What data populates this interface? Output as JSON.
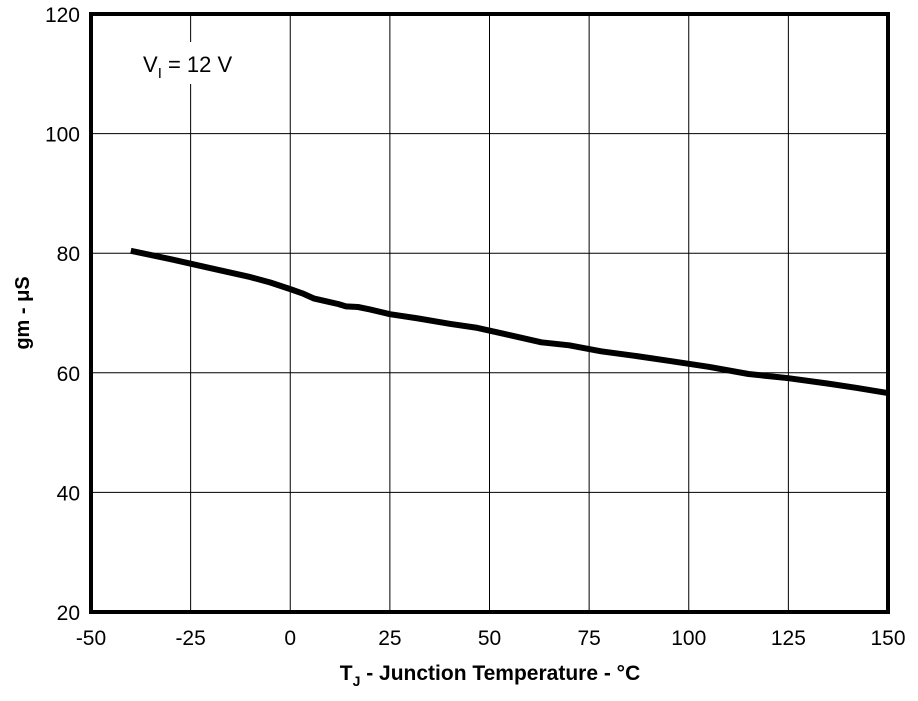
{
  "chart_data": {
    "type": "line",
    "title": "",
    "xlabel": "Junction Temperature - °C",
    "xlabel_symbol": "T",
    "xlabel_symbol_sub": "J",
    "xlabel_sep": " - ",
    "ylabel": "gm - μS",
    "annotation": {
      "symbol": "V",
      "sub": "I",
      "rest": " = 12 V"
    },
    "xlim": [
      -50,
      150
    ],
    "ylim": [
      20,
      120
    ],
    "xticks": [
      -50,
      -25,
      0,
      25,
      50,
      75,
      100,
      125,
      150
    ],
    "yticks": [
      20,
      40,
      60,
      80,
      100,
      120
    ],
    "grid": true,
    "series": [
      {
        "name": "gm",
        "color": "#000000",
        "x": [
          -40,
          -30,
          -20,
          -10,
          -5,
          0,
          3,
          6,
          10,
          12,
          14,
          17,
          20,
          25,
          32,
          40,
          47,
          55,
          63,
          70,
          78,
          87,
          95,
          105,
          115,
          125,
          135,
          142,
          150
        ],
        "y": [
          80.4,
          79.0,
          77.5,
          76.0,
          75.1,
          74.0,
          73.3,
          72.4,
          71.8,
          71.5,
          71.1,
          71.0,
          70.6,
          69.8,
          69.1,
          68.2,
          67.5,
          66.3,
          65.1,
          64.6,
          63.6,
          62.8,
          62.0,
          61.0,
          59.8,
          59.1,
          58.2,
          57.5,
          56.6
        ]
      }
    ]
  }
}
